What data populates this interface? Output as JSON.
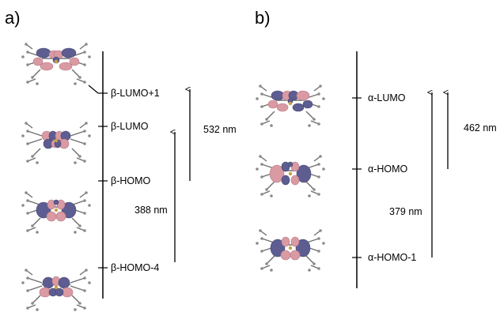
{
  "panels": [
    {
      "id": "a",
      "label": "a)",
      "levels": [
        {
          "label": "β-LUMO+1"
        },
        {
          "label": "β-LUMO"
        },
        {
          "label": "β-HOMO"
        },
        {
          "label": "β-HOMO-4"
        }
      ],
      "transitions": [
        {
          "from": "β-HOMO",
          "to": "β-LUMO+1",
          "label": "532 nm"
        },
        {
          "from": "β-HOMO-4",
          "to": "β-LUMO",
          "label": "388 nm"
        }
      ]
    },
    {
      "id": "b",
      "label": "b)",
      "levels": [
        {
          "label": "α-LUMO"
        },
        {
          "label": "α-HOMO"
        },
        {
          "label": "α-HOMO-1"
        }
      ],
      "transitions": [
        {
          "from": "α-HOMO",
          "to": "α-LUMO",
          "label": "462 nm"
        },
        {
          "from": "α-HOMO-1",
          "to": "α-LUMO",
          "label": "379 nm"
        }
      ]
    }
  ],
  "colors": {
    "lobe_pink": "#d99aa3",
    "lobe_blue": "#5d5d92",
    "skeleton": "#6e6e6e",
    "axis": "#000000"
  }
}
